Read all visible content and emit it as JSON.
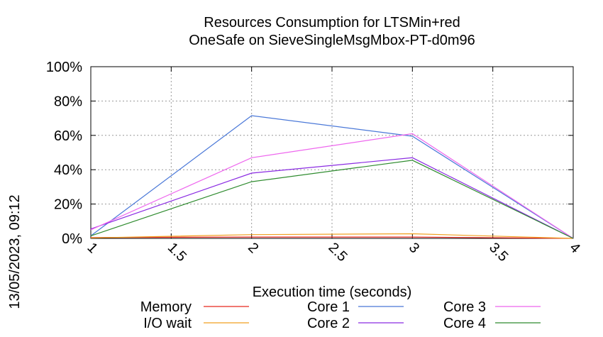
{
  "chart_data": {
    "type": "line",
    "title_lines": [
      "Resources Consumption for LTSMin+red",
      "OneSafe on SieveSingleMsgMbox-PT-d0m96"
    ],
    "xlabel": "Execution time (seconds)",
    "ylabel": "",
    "side_label": "13/05/2023, 09:12",
    "xlim": [
      1,
      4
    ],
    "ylim": [
      0,
      100
    ],
    "x_ticks": [
      "1",
      "1.5",
      "2",
      "2.5",
      "3",
      "3.5",
      "4"
    ],
    "y_ticks": [
      "0%",
      "20%",
      "40%",
      "60%",
      "80%",
      "100%"
    ],
    "grid": true,
    "legend_position": "bottom",
    "x": [
      1,
      2,
      3,
      4
    ],
    "series": [
      {
        "name": "Memory",
        "color": "#e8281f",
        "values": [
          0.5,
          0.8,
          0.8,
          0
        ]
      },
      {
        "name": "I/O wait",
        "color": "#f0a020",
        "values": [
          0.3,
          2.2,
          2.7,
          0
        ]
      },
      {
        "name": "Core 1",
        "color": "#4a78d8",
        "values": [
          1.5,
          71.5,
          59.5,
          0
        ]
      },
      {
        "name": "Core 2",
        "color": "#8a2be2",
        "values": [
          5.5,
          38,
          47,
          0
        ]
      },
      {
        "name": "Core 3",
        "color": "#ee66ee",
        "values": [
          5,
          47,
          61,
          0
        ]
      },
      {
        "name": "Core 4",
        "color": "#2e8b2e",
        "values": [
          1.5,
          33,
          45.5,
          0
        ]
      }
    ]
  }
}
